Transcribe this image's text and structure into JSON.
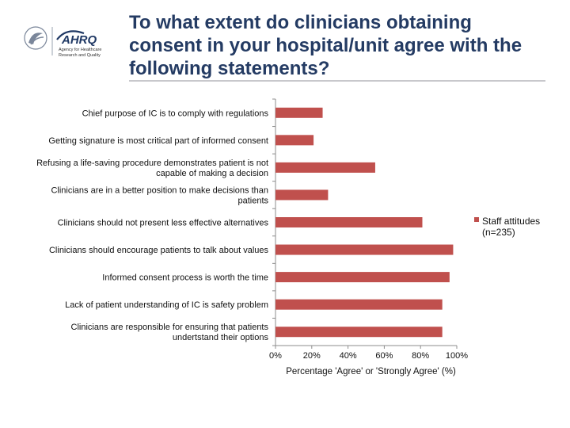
{
  "header": {
    "title": "To what extent do clinicians obtaining consent in your hospital/unit agree with the following statements?",
    "logo": {
      "name": "AHRQ",
      "line1": "Agency for Healthcare",
      "line2": "Research and Quality"
    }
  },
  "chart_data": {
    "type": "bar",
    "orientation": "horizontal",
    "title": "",
    "xlabel": "Percentage 'Agree' or 'Strongly Agree' (%)",
    "ylabel": "",
    "xlim": [
      0,
      100
    ],
    "xticks": [
      "0%",
      "20%",
      "40%",
      "60%",
      "80%",
      "100%"
    ],
    "categories": [
      [
        "Chief purpose of IC is to comply with regulations"
      ],
      [
        "Getting signature is most critical part of informed consent"
      ],
      [
        "Refusing a life-saving procedure demonstrates patient is not",
        "capable of making a decision"
      ],
      [
        "Clinicians are in a better position to make  decisions than",
        "patients"
      ],
      [
        "Clinicians should not present less effective alternatives"
      ],
      [
        "Clinicians should encourage patients to talk about values"
      ],
      [
        "Informed consent process is worth the time"
      ],
      [
        "Lack of patient understanding of IC is safety problem"
      ],
      [
        "Clinicians are responsible for ensuring that patients",
        "undertstand their options"
      ]
    ],
    "series": [
      {
        "name": "Staff attitudes (n=235)",
        "legend_lines": [
          "Staff attitudes",
          "(n=235)"
        ],
        "color": "#c0504d",
        "values": [
          26,
          21,
          55,
          29,
          81,
          98,
          96,
          92,
          92
        ]
      }
    ],
    "legend": "right",
    "grid": false
  }
}
